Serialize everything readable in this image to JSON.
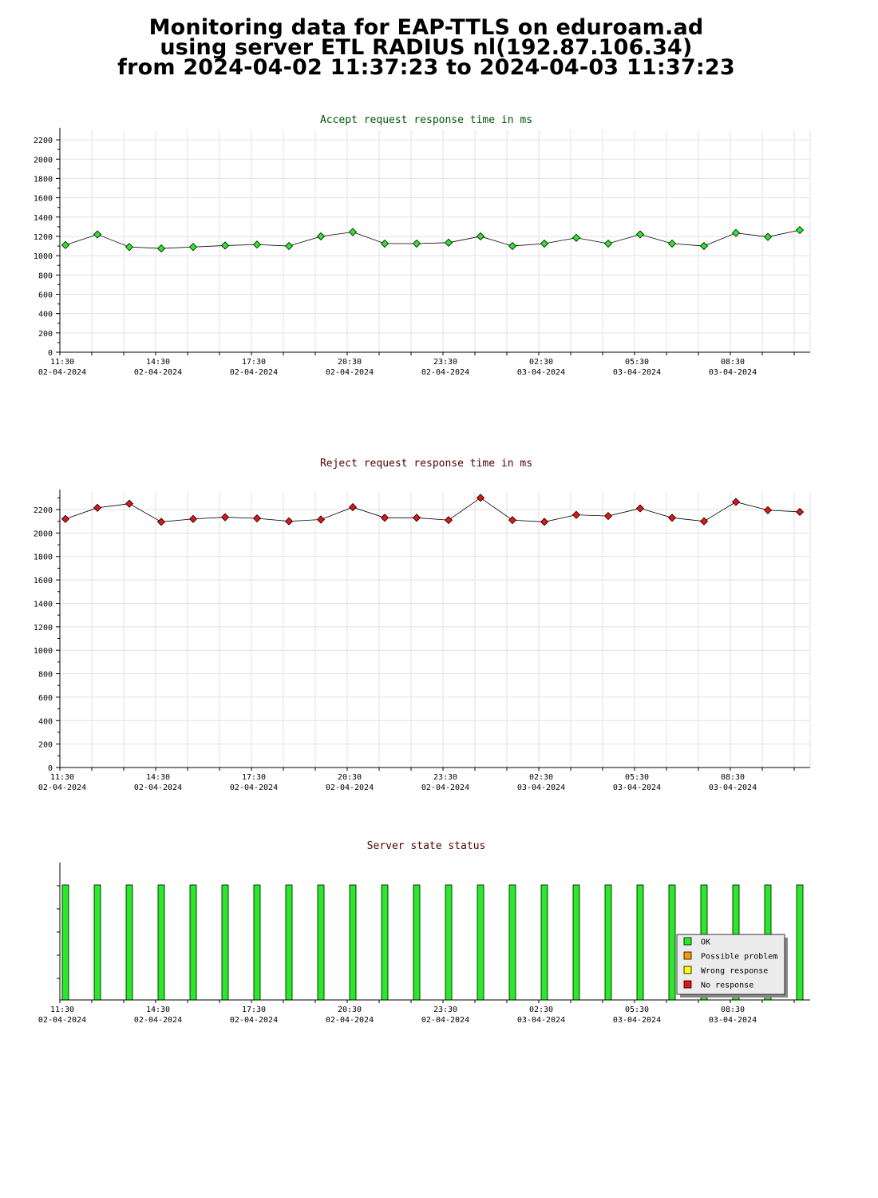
{
  "page_title": {
    "line1": "Monitoring data for EAP-TTLS on eduroam.ad",
    "line2": "using server ETL RADIUS nl(192.87.106.34)",
    "line3": "from 2024-04-02 11:37:23 to 2024-04-03 11:37:23"
  },
  "x_ticks": [
    {
      "time": "11:30",
      "date": "02-04-2024"
    },
    {
      "time": "14:30",
      "date": "02-04-2024"
    },
    {
      "time": "17:30",
      "date": "02-04-2024"
    },
    {
      "time": "20:30",
      "date": "02-04-2024"
    },
    {
      "time": "23:30",
      "date": "02-04-2024"
    },
    {
      "time": "02:30",
      "date": "03-04-2024"
    },
    {
      "time": "05:30",
      "date": "03-04-2024"
    },
    {
      "time": "08:30",
      "date": "03-04-2024"
    }
  ],
  "colors": {
    "accept_title": "#005500",
    "reject_title": "#550000",
    "status_title": "#550000",
    "accept_point": "#22ee22",
    "reject_point": "#ee1111",
    "ok": "#22ee22",
    "possible_problem": "#ff9900",
    "wrong_response": "#ffff00",
    "no_response": "#ee1111"
  },
  "chart_data": [
    {
      "type": "line",
      "title": "Accept request response time in ms",
      "xlabel": "",
      "ylabel": "",
      "ylim": [
        0,
        2300
      ],
      "yticks": [
        0,
        200,
        400,
        600,
        800,
        1000,
        1200,
        1400,
        1600,
        1800,
        2000,
        2200
      ],
      "x": [
        "11:37",
        "12:37",
        "13:37",
        "14:37",
        "15:37",
        "16:37",
        "17:37",
        "18:37",
        "19:37",
        "20:37",
        "21:37",
        "22:37",
        "23:37",
        "00:37",
        "01:37",
        "02:37",
        "03:37",
        "04:37",
        "05:37",
        "06:37",
        "07:37",
        "08:37",
        "09:37",
        "10:37"
      ],
      "series": [
        {
          "values": [
            1110,
            1220,
            1090,
            1075,
            1090,
            1105,
            1115,
            1100,
            1200,
            1245,
            1125,
            1125,
            1135,
            1200,
            1100,
            1125,
            1185,
            1125,
            1220,
            1125,
            1100,
            1235,
            1195,
            1265
          ]
        }
      ],
      "grid": true
    },
    {
      "type": "line",
      "title": "Reject request response time in ms",
      "xlabel": "",
      "ylabel": "",
      "ylim": [
        0,
        2350
      ],
      "yticks": [
        0,
        200,
        400,
        600,
        800,
        1000,
        1200,
        1400,
        1600,
        1800,
        2000,
        2200
      ],
      "x": [
        "11:37",
        "12:37",
        "13:37",
        "14:37",
        "15:37",
        "16:37",
        "17:37",
        "18:37",
        "19:37",
        "20:37",
        "21:37",
        "22:37",
        "23:37",
        "00:37",
        "01:37",
        "02:37",
        "03:37",
        "04:37",
        "05:37",
        "06:37",
        "07:37",
        "08:37",
        "09:37",
        "10:37"
      ],
      "series": [
        {
          "values": [
            2120,
            2215,
            2250,
            2095,
            2120,
            2135,
            2125,
            2100,
            2115,
            2220,
            2130,
            2130,
            2110,
            2300,
            2110,
            2095,
            2155,
            2145,
            2210,
            2130,
            2100,
            2265,
            2195,
            2180
          ]
        }
      ],
      "grid": true
    },
    {
      "type": "bar",
      "title": "Server state status",
      "x": [
        "11:37",
        "12:37",
        "13:37",
        "14:37",
        "15:37",
        "16:37",
        "17:37",
        "18:37",
        "19:37",
        "20:37",
        "21:37",
        "22:37",
        "23:37",
        "00:37",
        "01:37",
        "02:37",
        "03:37",
        "04:37",
        "05:37",
        "06:37",
        "07:37",
        "08:37",
        "09:37",
        "10:37"
      ],
      "values": [
        "OK",
        "OK",
        "OK",
        "OK",
        "OK",
        "OK",
        "OK",
        "OK",
        "OK",
        "OK",
        "OK",
        "OK",
        "OK",
        "OK",
        "OK",
        "OK",
        "OK",
        "OK",
        "OK",
        "OK",
        "OK",
        "OK",
        "OK",
        "OK"
      ],
      "legend": [
        "OK",
        "Possible problem",
        "Wrong response",
        "No response"
      ],
      "legend_position": "lower-right",
      "grid": false
    }
  ]
}
